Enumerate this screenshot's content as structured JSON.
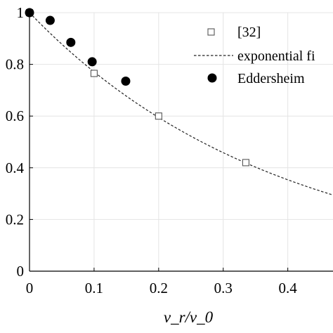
{
  "chart_data": {
    "type": "scatter",
    "xlabel": "v_r/v_0",
    "ylabel": "",
    "title": "",
    "xlim": [
      0,
      0.47
    ],
    "ylim": [
      0,
      1
    ],
    "grid": true,
    "x_ticks": [
      0,
      0.1,
      0.2,
      0.3,
      0.4
    ],
    "x_tick_labels": [
      "0",
      "0.1",
      "0.2",
      "0.3",
      "0.4"
    ],
    "y_ticks": [
      0,
      0.2,
      0.4,
      0.6,
      0.8,
      1
    ],
    "y_tick_labels": [
      "0",
      "0.2",
      "0.4",
      "0.6",
      "0.8",
      "1"
    ],
    "legend_position": "top-right",
    "series": [
      {
        "name": "[32]",
        "kind": "scatter",
        "marker": "open-square",
        "color": "#555555",
        "x": [
          0,
          0.1,
          0.2,
          0.335
        ],
        "y": [
          1.0,
          0.765,
          0.6,
          0.42
        ]
      },
      {
        "name": "exponential fi",
        "kind": "line",
        "style": "dashed",
        "color": "#222222",
        "model": "y = exp(-2.6 * x)",
        "decay_rate": 2.6
      },
      {
        "name": "Eddersheim",
        "kind": "scatter",
        "marker": "filled-circle",
        "color": "#000000",
        "x": [
          0,
          0.032,
          0.064,
          0.097,
          0.149
        ],
        "y": [
          1.0,
          0.97,
          0.885,
          0.81,
          0.735
        ]
      }
    ]
  }
}
